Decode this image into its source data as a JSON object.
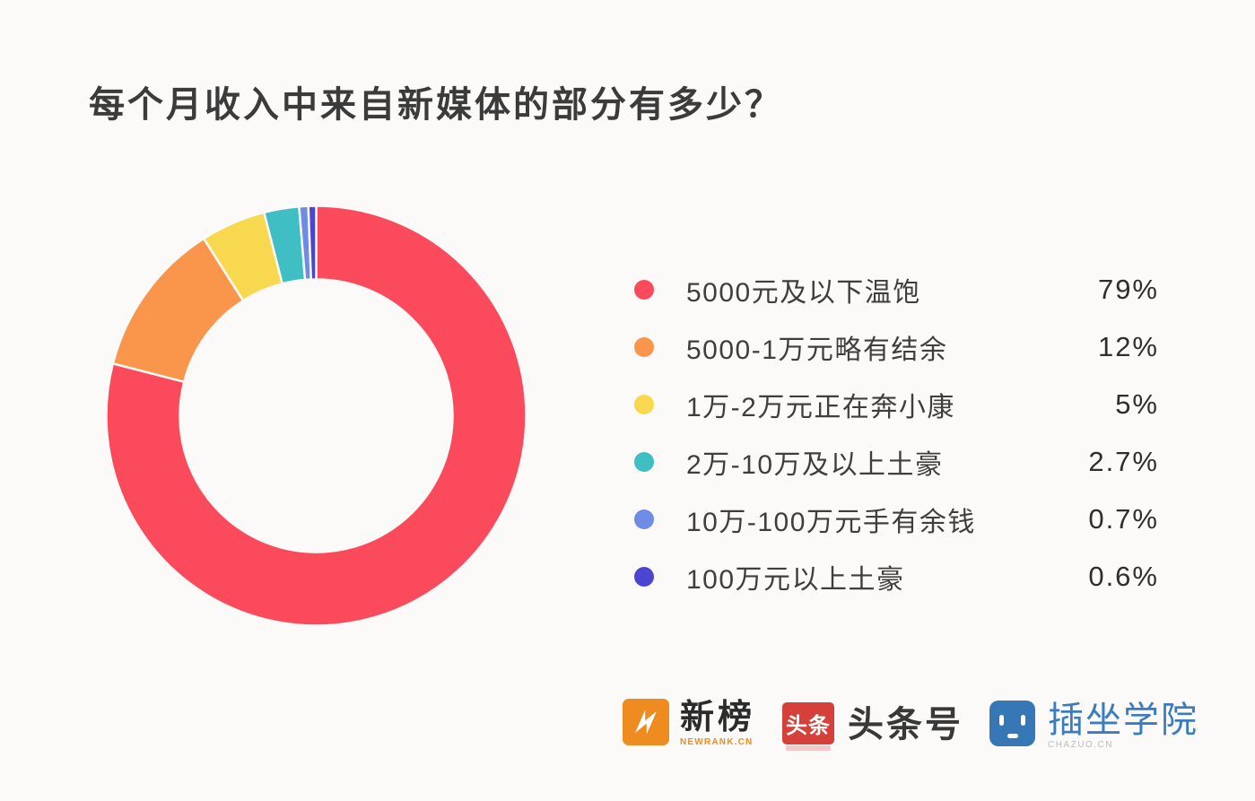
{
  "page": {
    "title": "每个月收入中来自新媒体的部分有多少？",
    "background_color": "#fbfaf8"
  },
  "chart_data": {
    "type": "pie",
    "subtype": "donut",
    "title": "每个月收入中来自新媒体的部分有多少？",
    "categories": [
      "5000元及以下温饱",
      "5000-1万元略有结余",
      "1万-2万元正在奔小康",
      "2万-10万及以上土豪",
      "10万-100万元手有余钱",
      "100万元以上土豪"
    ],
    "values": [
      79,
      12,
      5,
      2.7,
      0.7,
      0.6
    ],
    "value_labels": [
      "79%",
      "12%",
      "5%",
      "2.7%",
      "0.7%",
      "0.6%"
    ],
    "colors": [
      "#fa4a5c",
      "#f9964b",
      "#f8d84e",
      "#3fbec4",
      "#6e8ce3",
      "#4b45d2"
    ],
    "start_angle_deg": 0,
    "direction": "clockwise",
    "donut_hole_ratio": 0.65,
    "separator_color": "#fbfaf8",
    "legend_position": "right"
  },
  "footer": {
    "logos": [
      {
        "name": "newrank",
        "icon": "newrank-lightning-n-icon",
        "text": "新榜",
        "subtext": "NEWRANK.CN",
        "color": "#ef8c20"
      },
      {
        "name": "toutiao",
        "icon": "toutiao-badge-icon",
        "badge": "头条",
        "text": "头条号",
        "color": "#d5413a"
      },
      {
        "name": "chazuo",
        "icon": "chazuo-socket-face-icon",
        "text": "插坐学院",
        "subtext": "CHAZUO.CN",
        "color": "#3677b5"
      }
    ]
  }
}
